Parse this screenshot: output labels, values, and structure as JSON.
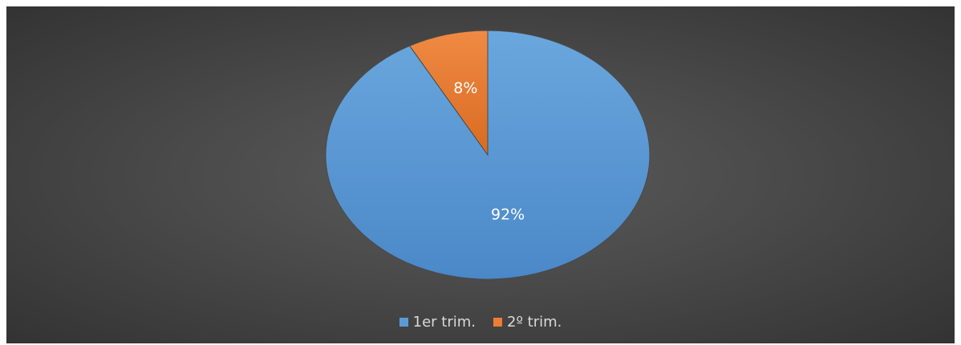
{
  "chart_data": {
    "type": "pie",
    "categories": [
      "1er trim.",
      "2º trim."
    ],
    "values": [
      92,
      8
    ],
    "data_labels": [
      "92%",
      "8%"
    ],
    "colors": [
      "#5b9bd5",
      "#ed7d31"
    ],
    "title": "",
    "legend_position": "bottom",
    "background": "#4a4a4a"
  }
}
